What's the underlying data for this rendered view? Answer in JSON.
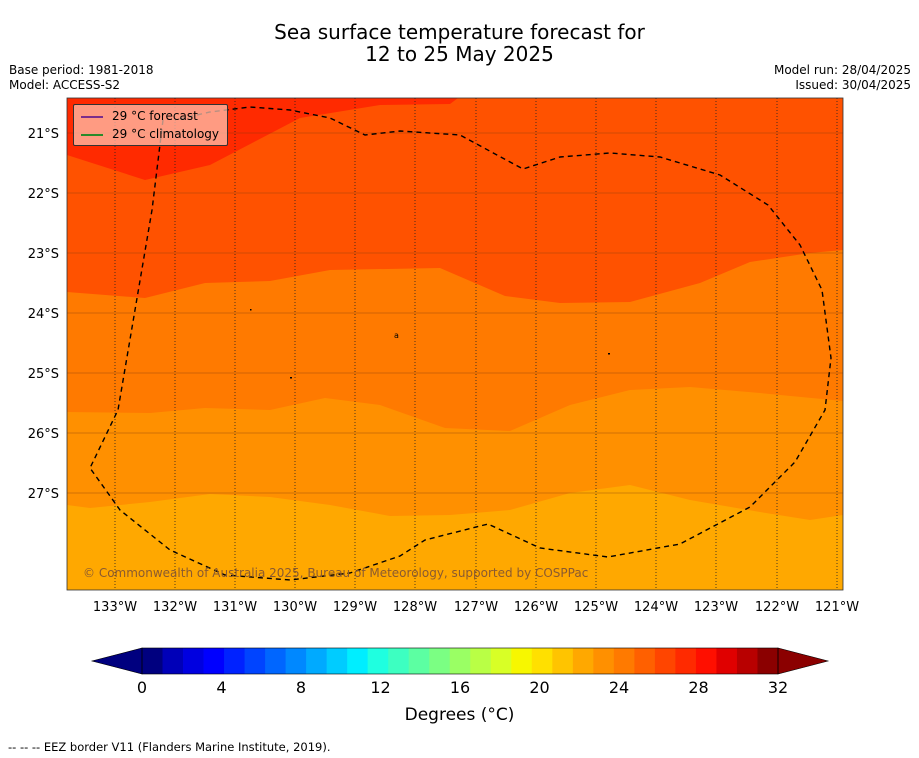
{
  "title": {
    "line1": "Sea surface temperature forecast for",
    "line2": "12 to 25 May 2025"
  },
  "info_left": {
    "base_period": "Base period: 1981-2018",
    "model": "Model: ACCESS-S2"
  },
  "info_right": {
    "model_run": "Model run: 28/04/2025",
    "issued": "Issued: 30/04/2025"
  },
  "legend": [
    {
      "label": "29 °C  forecast",
      "color": "#7b2d8b"
    },
    {
      "label": "29 °C  climatology",
      "color": "#2a8a2a"
    }
  ],
  "map": {
    "lat_labels": [
      "21°S",
      "22°S",
      "23°S",
      "24°S",
      "25°S",
      "26°S",
      "27°S"
    ],
    "lon_labels": [
      "133°W",
      "132°W",
      "131°W",
      "130°W",
      "129°W",
      "128°W",
      "127°W",
      "126°W",
      "125°W",
      "124°W",
      "123°W",
      "122°W",
      "121°W"
    ],
    "copyright": "© Commonwealth of Australia 2025, Bureau of Meteorology, supported by COSPPac",
    "band_colors": [
      "#ff2a00",
      "#ff5200",
      "#ff7a00",
      "#ff9000",
      "#ffa800"
    ]
  },
  "colorbar": {
    "title": "Degrees (°C)",
    "ticks": [
      "0",
      "4",
      "8",
      "12",
      "16",
      "20",
      "24",
      "28",
      "32"
    ],
    "colors": [
      "#00007f",
      "#0000b8",
      "#0000e0",
      "#0000ff",
      "#0022ff",
      "#0044ff",
      "#0066ff",
      "#0088ff",
      "#00aaff",
      "#00ccff",
      "#00eeff",
      "#1fffe0",
      "#3dffc1",
      "#5cffa2",
      "#7bff83",
      "#9aff64",
      "#b9ff45",
      "#d8ff26",
      "#f7f700",
      "#ffe000",
      "#ffc400",
      "#ffa800",
      "#ff9000",
      "#ff7a00",
      "#ff6000",
      "#ff4500",
      "#ff2a00",
      "#ff0f00",
      "#e00000",
      "#b80000",
      "#8b0000"
    ],
    "under_color": "#00007f",
    "over_color": "#8b0000"
  },
  "footer": "-- -- -- EEZ border V11 (Flanders Marine Institute, 2019)."
}
